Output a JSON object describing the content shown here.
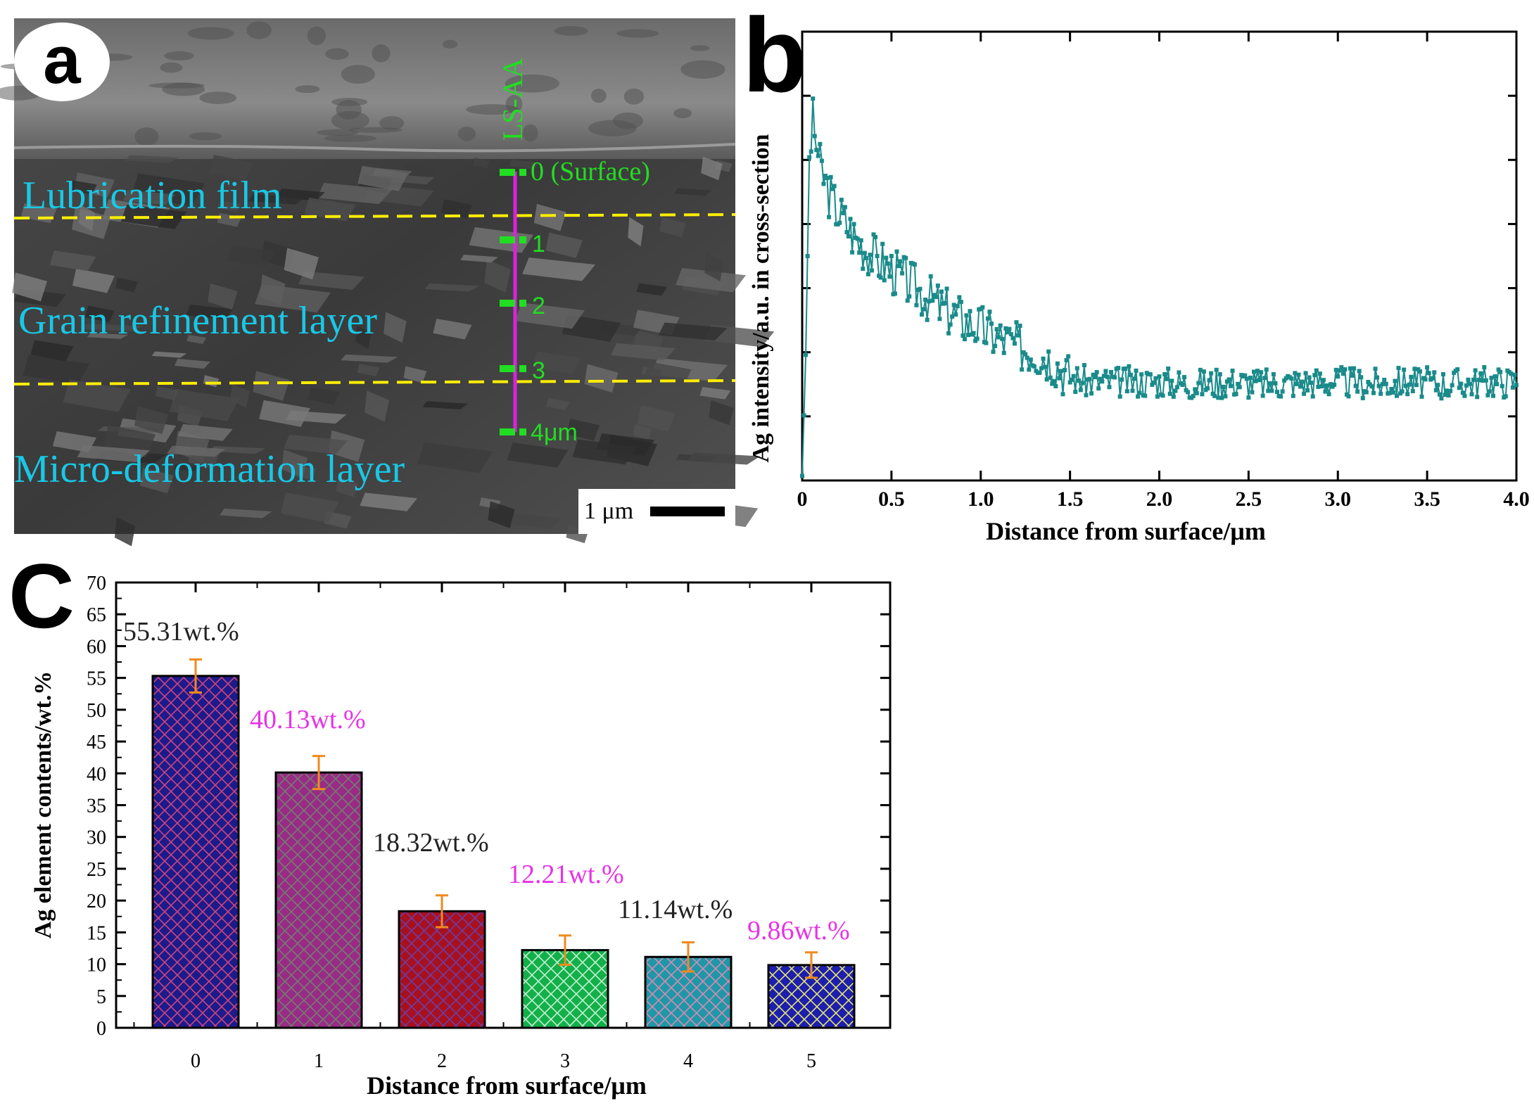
{
  "panel_a": {
    "letter": "a",
    "line_label": "LS-AA",
    "marks": [
      "0 (Surface)",
      "1",
      "2",
      "3",
      "4μm"
    ],
    "layers": [
      "Lubrication film",
      "Grain refinement layer",
      "Micro-deformation layer"
    ],
    "scale_bar": "1 μm",
    "colors": {
      "layer_text": "#19c8e6",
      "marker": "#22dd22",
      "line": "#dd22dd",
      "dash": "#ffee00"
    }
  },
  "panel_b": {
    "letter": "b"
  },
  "panel_c": {
    "letter": "C"
  },
  "chart_data": [
    {
      "type": "line",
      "title": "",
      "xlabel": "Distance from surface/μm",
      "ylabel": "Ag intensity/a.u. in cross-section",
      "xlim": [
        0,
        4.0
      ],
      "xticks": [
        "0",
        "0.5",
        "1.0",
        "1.5",
        "2.0",
        "2.5",
        "3.0",
        "3.5",
        "4.0"
      ],
      "ylim": [
        0,
        1
      ],
      "yticks_labeled": false,
      "color": "#1a8a8a",
      "series": [
        {
          "name": "Ag",
          "x": [
            0,
            0.02,
            0.04,
            0.06,
            0.08,
            0.1,
            0.15,
            0.2,
            0.3,
            0.4,
            0.5,
            0.6,
            0.7,
            0.8,
            0.9,
            1.0,
            1.1,
            1.2,
            1.3,
            1.4,
            1.5,
            1.6,
            1.8,
            2.0,
            2.2,
            2.4,
            2.6,
            2.8,
            3.0,
            3.2,
            3.4,
            3.6,
            3.8,
            4.0
          ],
          "y": [
            0.01,
            0.28,
            0.72,
            0.8,
            0.75,
            0.7,
            0.64,
            0.6,
            0.54,
            0.5,
            0.47,
            0.44,
            0.41,
            0.38,
            0.36,
            0.34,
            0.32,
            0.3,
            0.29,
            0.27,
            0.23,
            0.22,
            0.22,
            0.22,
            0.215,
            0.22,
            0.215,
            0.22,
            0.22,
            0.215,
            0.22,
            0.215,
            0.22,
            0.22
          ]
        }
      ]
    },
    {
      "type": "bar",
      "title": "",
      "xlabel": "Distance from surface/μm",
      "ylabel": "Ag element contents/wt.%",
      "categories": [
        "0",
        "1",
        "2",
        "3",
        "4",
        "5"
      ],
      "values": [
        55.31,
        40.13,
        18.32,
        12.21,
        11.14,
        9.86
      ],
      "errors": [
        2.6,
        2.6,
        2.5,
        2.3,
        2.3,
        2.0
      ],
      "data_labels": [
        "55.31wt.%",
        "40.13wt.%",
        "18.32wt.%",
        "12.21wt.%",
        "11.14wt.%",
        "9.86wt.%"
      ],
      "label_colors": [
        "#222222",
        "#e633e6",
        "#222222",
        "#e633e6",
        "#222222",
        "#e633e6"
      ],
      "bar_colors": [
        "#1b1b8c",
        "#9a2a86",
        "#a8101e",
        "#12b04a",
        "#1e98a8",
        "#1d1db0"
      ],
      "hatch_colors": [
        "#d0447a",
        "#6f7f6f",
        "#6b3ea8",
        "#c6f0d0",
        "#d98ab0",
        "#e2e66a"
      ],
      "error_color": "#f08a1c",
      "ylim": [
        0,
        70
      ],
      "yticks": [
        0,
        5,
        10,
        15,
        20,
        25,
        30,
        35,
        40,
        45,
        50,
        55,
        60,
        65,
        70
      ]
    }
  ]
}
